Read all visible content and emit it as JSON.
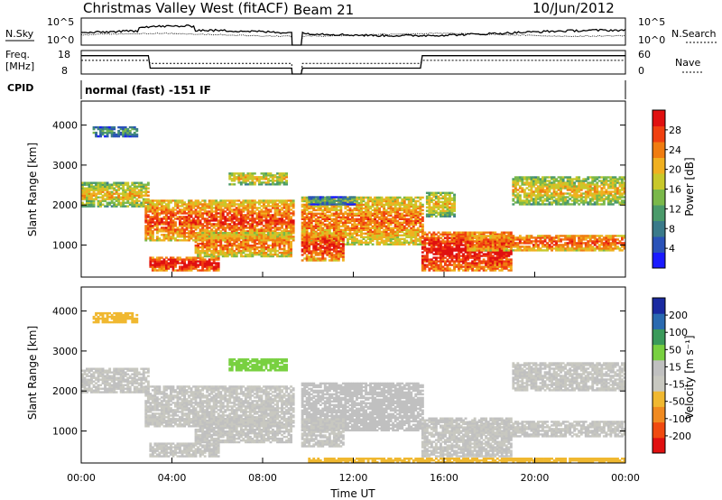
{
  "header": {
    "station": "Christmas Valley West (fitACF)",
    "beam": "Beam 21",
    "date": "10/Jun/2012"
  },
  "top_panels": {
    "nsky_label": "N.Sky",
    "nsky_ticks": [
      "10^5",
      "10^0"
    ],
    "nsearch_label": "N.Search",
    "nsearch_ticks": [
      "10^5",
      "10^0"
    ],
    "freq_label_1": "Freq.",
    "freq_label_2": "[MHz]",
    "freq_ticks": [
      "18",
      "8"
    ],
    "nave_label": "Nave",
    "nave_ticks": [
      "60",
      "0"
    ],
    "cpid_label": "CPID",
    "cpid_text": "normal (fast) -151 IF"
  },
  "colors": {
    "power": [
      "#1a1aff",
      "#2a52b8",
      "#3a7a8a",
      "#4a9a6a",
      "#7ab84a",
      "#c8c82a",
      "#f0b020",
      "#f07c10",
      "#f04010",
      "#e01010"
    ],
    "velocity": [
      "#e01010",
      "#f04a10",
      "#f08a20",
      "#f0b830",
      "#c8c8c0",
      "#c0c0c0",
      "#78d040",
      "#3a9a5a",
      "#2a6ab0",
      "#1a2aa0"
    ]
  },
  "chart_data": [
    {
      "type": "heatmap",
      "name_panel": "power",
      "xlabel": "Time UT",
      "ylabel": "Slant Range [km]",
      "x_ticks": [
        "00:00",
        "04:00",
        "08:00",
        "12:00",
        "16:00",
        "20:00",
        "00:00"
      ],
      "xlim_hours": [
        0,
        24
      ],
      "y_ticks": [
        1000,
        2000,
        3000,
        4000
      ],
      "ylim": [
        200,
        4600
      ],
      "colorbar_label": "Power [dB]",
      "colorbar_ticks": [
        "28",
        "24",
        "20",
        "16",
        "12",
        "8",
        "4"
      ],
      "colorbar_range": [
        0,
        30
      ],
      "data_gap_hours": [
        9.3,
        9.7
      ],
      "bands": [
        {
          "t": [
            0,
            3
          ],
          "range": [
            1950,
            2550
          ],
          "value": 16
        },
        {
          "t": [
            0.5,
            2.5
          ],
          "range": [
            3700,
            3950
          ],
          "value": 8
        },
        {
          "t": [
            2.8,
            9.3
          ],
          "range": [
            1100,
            2100
          ],
          "value": 22
        },
        {
          "t": [
            3,
            6
          ],
          "range": [
            350,
            700
          ],
          "value": 26
        },
        {
          "t": [
            5,
            9.2
          ],
          "range": [
            700,
            1300
          ],
          "value": 20
        },
        {
          "t": [
            6.5,
            9
          ],
          "range": [
            2500,
            2800
          ],
          "value": 16
        },
        {
          "t": [
            9.7,
            15
          ],
          "range": [
            1000,
            2200
          ],
          "value": 20
        },
        {
          "t": [
            9.7,
            11.5
          ],
          "range": [
            600,
            1300
          ],
          "value": 24
        },
        {
          "t": [
            10,
            12
          ],
          "range": [
            2000,
            2200
          ],
          "value": 8
        },
        {
          "t": [
            15,
            19
          ],
          "range": [
            350,
            1300
          ],
          "value": 26
        },
        {
          "t": [
            15.2,
            16.5
          ],
          "range": [
            1700,
            2300
          ],
          "value": 16
        },
        {
          "t": [
            17,
            24
          ],
          "range": [
            850,
            1250
          ],
          "value": 22
        },
        {
          "t": [
            19,
            24
          ],
          "range": [
            2000,
            2700
          ],
          "value": 16
        }
      ]
    },
    {
      "type": "heatmap",
      "name_panel": "velocity",
      "xlabel": "Time UT",
      "ylabel": "Slant Range [km]",
      "x_ticks": [
        "00:00",
        "04:00",
        "08:00",
        "12:00",
        "16:00",
        "20:00",
        "00:00"
      ],
      "xlim_hours": [
        0,
        24
      ],
      "y_ticks": [
        1000,
        2000,
        3000,
        4000
      ],
      "ylim": [
        200,
        4600
      ],
      "colorbar_label": "Velocity [m s⁻¹]",
      "colorbar_ticks": [
        "200",
        "100",
        "50",
        "15",
        "-15",
        "-50",
        "-100",
        "-200"
      ],
      "colorbar_range": [
        -250,
        250
      ],
      "data_gap_hours": [
        9.3,
        9.7
      ],
      "bands": [
        {
          "t": [
            0,
            3
          ],
          "range": [
            1950,
            2550
          ],
          "value": 0
        },
        {
          "t": [
            0.5,
            2.5
          ],
          "range": [
            3700,
            3950
          ],
          "value": -60
        },
        {
          "t": [
            2.8,
            9.3
          ],
          "range": [
            1100,
            2100
          ],
          "value": 0
        },
        {
          "t": [
            3,
            6
          ],
          "range": [
            350,
            700
          ],
          "value": 0
        },
        {
          "t": [
            5,
            9.2
          ],
          "range": [
            700,
            1300
          ],
          "value": 0
        },
        {
          "t": [
            6.5,
            9
          ],
          "range": [
            2500,
            2800
          ],
          "value": 80
        },
        {
          "t": [
            9.7,
            15
          ],
          "range": [
            1000,
            2200
          ],
          "value": 30
        },
        {
          "t": [
            9.7,
            11.5
          ],
          "range": [
            600,
            1300
          ],
          "value": 0
        },
        {
          "t": [
            15,
            19
          ],
          "range": [
            350,
            1300
          ],
          "value": 0
        },
        {
          "t": [
            17,
            24
          ],
          "range": [
            850,
            1250
          ],
          "value": 0
        },
        {
          "t": [
            19,
            24
          ],
          "range": [
            2000,
            2700
          ],
          "value": 0
        },
        {
          "t": [
            10,
            24
          ],
          "range": [
            200,
            300
          ],
          "value": -60
        }
      ]
    }
  ]
}
